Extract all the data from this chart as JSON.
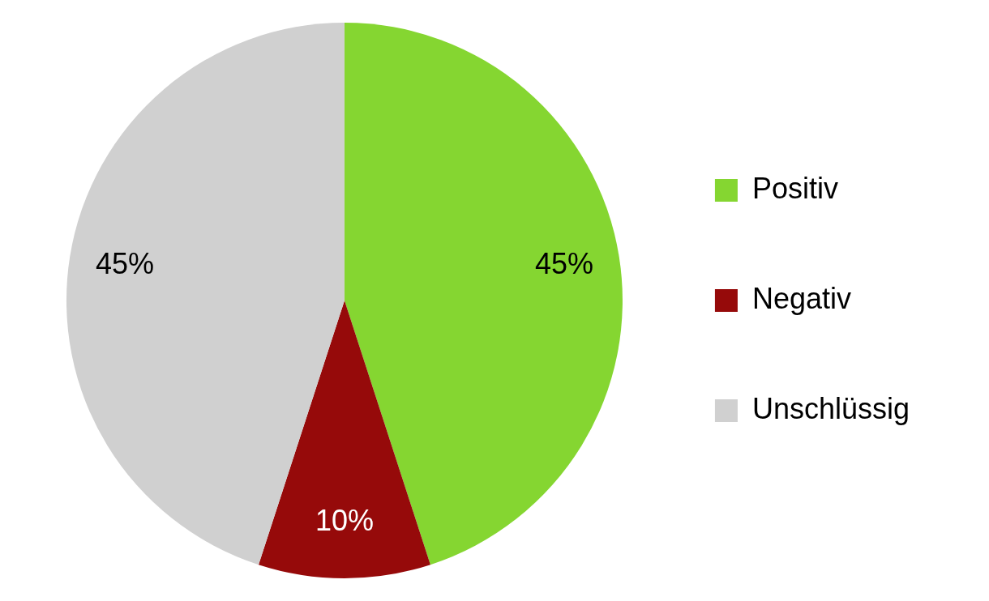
{
  "chart_data": {
    "type": "pie",
    "categories": [
      "Positiv",
      "Negativ",
      "Unschlüssig"
    ],
    "values": [
      45,
      10,
      45
    ],
    "colors": [
      "#85d631",
      "#960a0a",
      "#d0d0d0"
    ],
    "value_labels": [
      "45%",
      "10%",
      "45%"
    ],
    "legend": "right"
  }
}
